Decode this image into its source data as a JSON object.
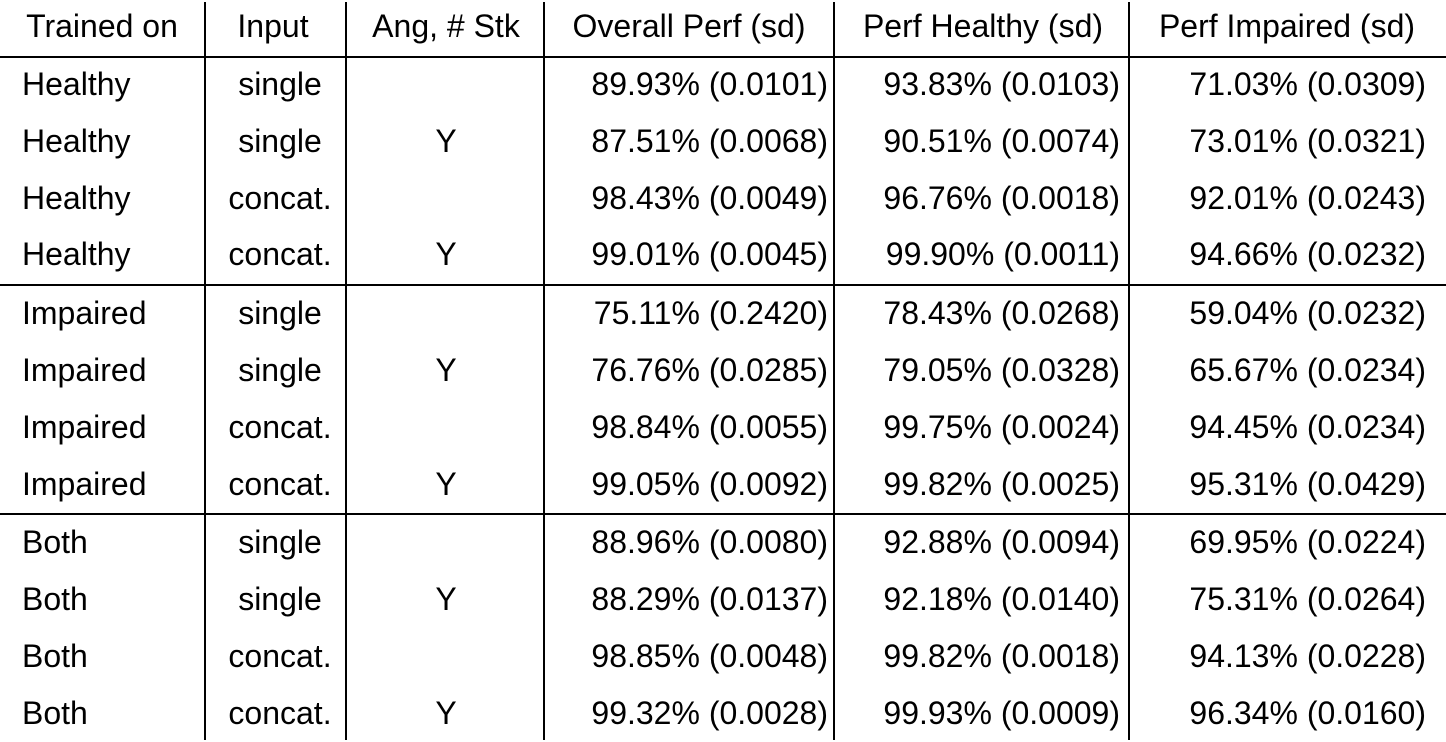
{
  "table": {
    "header": [
      "Trained on",
      "Input",
      "Ang, # Stk",
      "Overall Perf (sd)",
      "Perf Healthy (sd)",
      "Perf Impaired (sd)"
    ],
    "rows": [
      [
        "Healthy",
        "single",
        null,
        "89.93% (0.0101)",
        "93.83% (0.0103)",
        "71.03% (0.0309)"
      ],
      [
        "Healthy",
        "single",
        "Y",
        "87.51% (0.0068)",
        "90.51% (0.0074)",
        "73.01% (0.0321)"
      ],
      [
        "Healthy",
        "concat.",
        null,
        "98.43% (0.0049)",
        "96.76% (0.0018)",
        "92.01% (0.0243)"
      ],
      [
        "Healthy",
        "concat.",
        "Y",
        "99.01% (0.0045)",
        "99.90% (0.0011)",
        "94.66% (0.0232)"
      ],
      [
        "Impaired",
        "single",
        null,
        "75.11% (0.2420)",
        "78.43% (0.0268)",
        "59.04% (0.0232)"
      ],
      [
        "Impaired",
        "single",
        "Y",
        "76.76% (0.0285)",
        "79.05% (0.0328)",
        "65.67% (0.0234)"
      ],
      [
        "Impaired",
        "concat.",
        null,
        "98.84% (0.0055)",
        "99.75% (0.0024)",
        "94.45% (0.0234)"
      ],
      [
        "Impaired",
        "concat.",
        "Y",
        "99.05% (0.0092)",
        "99.82% (0.0025)",
        "95.31% (0.0429)"
      ],
      [
        "Both",
        "single",
        null,
        "88.96% (0.0080)",
        "92.88% (0.0094)",
        "69.95% (0.0224)"
      ],
      [
        "Both",
        "single",
        "Y",
        "88.29% (0.0137)",
        "92.18% (0.0140)",
        "75.31% (0.0264)"
      ],
      [
        "Both",
        "concat.",
        null,
        "98.85% (0.0048)",
        "99.82% (0.0018)",
        "94.13% (0.0228)"
      ],
      [
        "Both",
        "concat.",
        "Y",
        "99.32% (0.0028)",
        "99.93% (0.0009)",
        "96.34% (0.0160)"
      ]
    ]
  }
}
